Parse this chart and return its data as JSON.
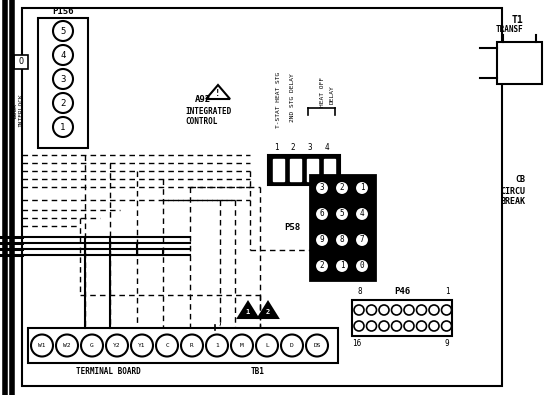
{
  "bg_color": "#ffffff",
  "fig_width": 5.54,
  "fig_height": 3.95,
  "p156_pins": [
    "5",
    "4",
    "3",
    "2",
    "1"
  ],
  "p58_pins": [
    [
      "3",
      "2",
      "1"
    ],
    [
      "6",
      "5",
      "4"
    ],
    [
      "9",
      "8",
      "7"
    ],
    [
      "2",
      "1",
      "0"
    ]
  ],
  "tp_labels": [
    "W1",
    "W2",
    "G",
    "Y2",
    "Y1",
    "C",
    "R",
    "1",
    "M",
    "L",
    "D",
    "DS"
  ]
}
